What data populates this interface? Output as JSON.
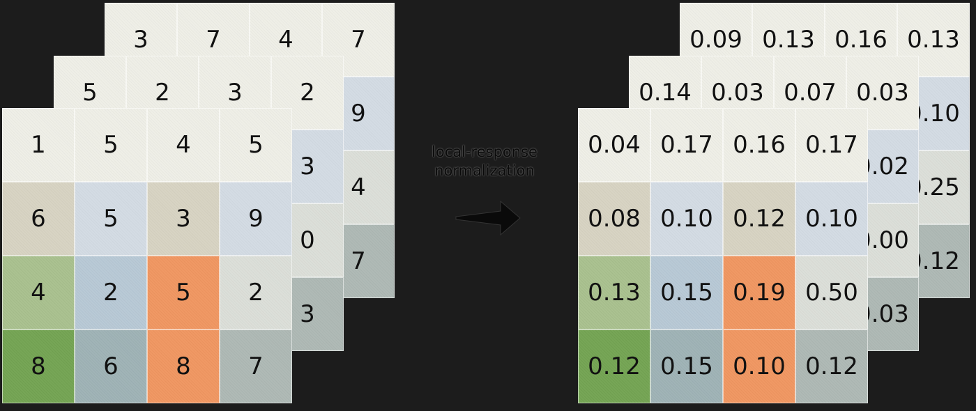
{
  "colors": {
    "background": "#1c1c1c",
    "cream": "#eeeee6",
    "tan": "#d7d3c2",
    "lightblue": "#d3dbe3",
    "lightgray": "#dbded8",
    "sage": "#a8c08d",
    "blue": "#b7c8d5",
    "orange": "#f09660",
    "green": "#73a352",
    "steel": "#9eb2b5",
    "gray": "#adb8b4"
  },
  "input_stack": {
    "back": {
      "rows": [
        [
          {
            "v": "3",
            "c": "cream"
          },
          {
            "v": "7",
            "c": "cream"
          },
          {
            "v": "4",
            "c": "cream"
          },
          {
            "v": "7",
            "c": "cream"
          }
        ],
        [
          {
            "v": "",
            "c": "tan"
          },
          {
            "v": "",
            "c": "lightblue"
          },
          {
            "v": "",
            "c": "tan"
          },
          {
            "v": "9",
            "c": "lightblue"
          }
        ],
        [
          {
            "v": "",
            "c": "sage"
          },
          {
            "v": "",
            "c": "blue"
          },
          {
            "v": "",
            "c": "orange"
          },
          {
            "v": "4",
            "c": "lightgray"
          }
        ],
        [
          {
            "v": "",
            "c": "green"
          },
          {
            "v": "",
            "c": "steel"
          },
          {
            "v": "",
            "c": "orange"
          },
          {
            "v": "7",
            "c": "gray"
          }
        ]
      ]
    },
    "middle": {
      "rows": [
        [
          {
            "v": "5",
            "c": "cream"
          },
          {
            "v": "2",
            "c": "cream"
          },
          {
            "v": "3",
            "c": "cream"
          },
          {
            "v": "2",
            "c": "cream"
          }
        ],
        [
          {
            "v": "",
            "c": "tan"
          },
          {
            "v": "",
            "c": "lightblue"
          },
          {
            "v": "",
            "c": "tan"
          },
          {
            "v": "3",
            "c": "lightblue"
          }
        ],
        [
          {
            "v": "",
            "c": "sage"
          },
          {
            "v": "",
            "c": "blue"
          },
          {
            "v": "",
            "c": "orange"
          },
          {
            "v": "0",
            "c": "lightgray"
          }
        ],
        [
          {
            "v": "",
            "c": "green"
          },
          {
            "v": "",
            "c": "steel"
          },
          {
            "v": "",
            "c": "orange"
          },
          {
            "v": "3",
            "c": "gray"
          }
        ]
      ]
    },
    "front": {
      "rows": [
        [
          {
            "v": "1",
            "c": "cream"
          },
          {
            "v": "5",
            "c": "cream"
          },
          {
            "v": "4",
            "c": "cream"
          },
          {
            "v": "5",
            "c": "cream"
          }
        ],
        [
          {
            "v": "6",
            "c": "tan"
          },
          {
            "v": "5",
            "c": "lightblue"
          },
          {
            "v": "3",
            "c": "tan"
          },
          {
            "v": "9",
            "c": "lightblue"
          }
        ],
        [
          {
            "v": "4",
            "c": "sage"
          },
          {
            "v": "2",
            "c": "blue"
          },
          {
            "v": "5",
            "c": "orange"
          },
          {
            "v": "2",
            "c": "lightgray"
          }
        ],
        [
          {
            "v": "8",
            "c": "green"
          },
          {
            "v": "6",
            "c": "steel"
          },
          {
            "v": "8",
            "c": "orange"
          },
          {
            "v": "7",
            "c": "gray"
          }
        ]
      ]
    }
  },
  "operation": {
    "label_line1": "local-response",
    "label_line2": "normalization"
  },
  "output_stack": {
    "back": {
      "rows": [
        [
          {
            "v": "0.09",
            "c": "cream"
          },
          {
            "v": "0.13",
            "c": "cream"
          },
          {
            "v": "0.16",
            "c": "cream"
          },
          {
            "v": "0.13",
            "c": "cream"
          }
        ],
        [
          {
            "v": "",
            "c": "tan"
          },
          {
            "v": "",
            "c": "lightblue"
          },
          {
            "v": "",
            "c": "tan"
          },
          {
            "v": "0.10",
            "c": "lightblue"
          }
        ],
        [
          {
            "v": "",
            "c": "sage"
          },
          {
            "v": "",
            "c": "blue"
          },
          {
            "v": "",
            "c": "orange"
          },
          {
            "v": "0.25",
            "c": "lightgray"
          }
        ],
        [
          {
            "v": "",
            "c": "green"
          },
          {
            "v": "",
            "c": "steel"
          },
          {
            "v": "",
            "c": "orange"
          },
          {
            "v": "0.12",
            "c": "gray"
          }
        ]
      ]
    },
    "middle": {
      "rows": [
        [
          {
            "v": "0.14",
            "c": "cream"
          },
          {
            "v": "0.03",
            "c": "cream"
          },
          {
            "v": "0.07",
            "c": "cream"
          },
          {
            "v": "0.03",
            "c": "cream"
          }
        ],
        [
          {
            "v": "",
            "c": "tan"
          },
          {
            "v": "",
            "c": "lightblue"
          },
          {
            "v": "",
            "c": "tan"
          },
          {
            "v": "0.02",
            "c": "lightblue"
          }
        ],
        [
          {
            "v": "",
            "c": "sage"
          },
          {
            "v": "",
            "c": "blue"
          },
          {
            "v": "",
            "c": "orange"
          },
          {
            "v": "0.00",
            "c": "lightgray"
          }
        ],
        [
          {
            "v": "",
            "c": "green"
          },
          {
            "v": "",
            "c": "steel"
          },
          {
            "v": "",
            "c": "orange"
          },
          {
            "v": "0.03",
            "c": "gray"
          }
        ]
      ]
    },
    "front": {
      "rows": [
        [
          {
            "v": "0.04",
            "c": "cream"
          },
          {
            "v": "0.17",
            "c": "cream"
          },
          {
            "v": "0.16",
            "c": "cream"
          },
          {
            "v": "0.17",
            "c": "cream"
          }
        ],
        [
          {
            "v": "0.08",
            "c": "tan"
          },
          {
            "v": "0.10",
            "c": "lightblue"
          },
          {
            "v": "0.12",
            "c": "tan"
          },
          {
            "v": "0.10",
            "c": "lightblue"
          }
        ],
        [
          {
            "v": "0.13",
            "c": "sage"
          },
          {
            "v": "0.15",
            "c": "blue"
          },
          {
            "v": "0.19",
            "c": "orange"
          },
          {
            "v": "0.50",
            "c": "lightgray"
          }
        ],
        [
          {
            "v": "0.12",
            "c": "green"
          },
          {
            "v": "0.15",
            "c": "steel"
          },
          {
            "v": "0.10",
            "c": "orange"
          },
          {
            "v": "0.12",
            "c": "gray"
          }
        ]
      ]
    }
  }
}
